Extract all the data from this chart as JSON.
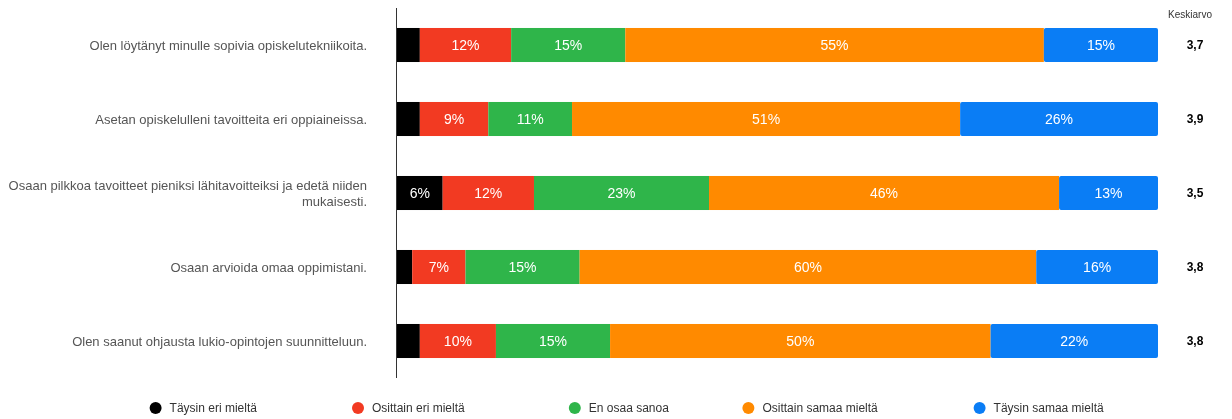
{
  "chart_data": {
    "type": "bar",
    "orientation": "horizontal",
    "stacked": true,
    "legend": "bottom",
    "categories": [
      "Olen löytänyt minulle sopivia opiskelutekniikoita.",
      "Asetan opiskelulleni tavoitteita eri oppiaineissa.",
      "Osaan pilkkoa tavoitteet pieniksi lähitavoitteiksi ja edetä niiden mukaisesti.",
      "Osaan arvioida omaa oppimistani.",
      "Olen saanut ohjausta lukio-opintojen suunnitteluun."
    ],
    "series": [
      {
        "name": "Täysin eri mieltä",
        "color": "#000000",
        "values": [
          3,
          3,
          6,
          2,
          3
        ],
        "value_labels": [
          null,
          null,
          "6%",
          null,
          null
        ]
      },
      {
        "name": "Osittain eri mieltä",
        "color": "#f23a22",
        "values": [
          12,
          9,
          12,
          7,
          10
        ],
        "value_labels": [
          "12%",
          "9%",
          "12%",
          "7%",
          "10%"
        ]
      },
      {
        "name": "En osaa sanoa",
        "color": "#2fb54a",
        "values": [
          15,
          11,
          23,
          15,
          15
        ],
        "value_labels": [
          "15%",
          "11%",
          "23%",
          "15%",
          "15%"
        ]
      },
      {
        "name": "Osittain samaa mieltä",
        "color": "#ff8a00",
        "values": [
          55,
          51,
          46,
          60,
          50
        ],
        "value_labels": [
          "55%",
          "51%",
          "46%",
          "60%",
          "50%"
        ]
      },
      {
        "name": "Täysin samaa mieltä",
        "color": "#0a7df5",
        "values": [
          15,
          26,
          13,
          16,
          22
        ],
        "value_labels": [
          "15%",
          "26%",
          "13%",
          "16%",
          "22%"
        ]
      }
    ],
    "annotations": [
      "Keskiarvo",
      "3,7",
      "3,9",
      "3,5",
      "3,8",
      "3,8"
    ]
  }
}
